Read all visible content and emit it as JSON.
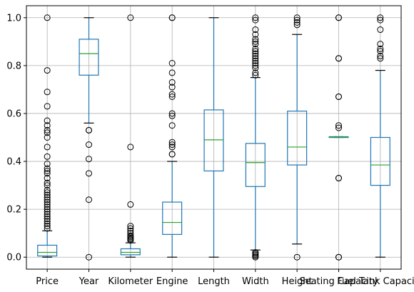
{
  "chart_data": {
    "type": "boxplot",
    "grid": true,
    "ylim": [
      -0.05,
      1.05
    ],
    "yticks": [
      0.0,
      0.2,
      0.4,
      0.6,
      0.8,
      1.0
    ],
    "ytick_labels": [
      "0.0",
      "0.2",
      "0.4",
      "0.6",
      "0.8",
      "1.0"
    ],
    "colors": {
      "box": "#1f77b4",
      "median": "#2ca02c",
      "grid": "#b0b0b0",
      "axes": "#000000"
    },
    "categories": [
      "Price",
      "Year",
      "Kilometer",
      "Engine",
      "Length",
      "Width",
      "Height",
      "Seating Capacity",
      "Fuel Tank Capacity"
    ],
    "boxes": [
      {
        "label": "Price",
        "whislo": 0.0,
        "q1": 0.005,
        "med": 0.02,
        "q3": 0.05,
        "whishi": 0.11,
        "fliers": [
          1.0,
          0.78,
          0.69,
          0.63,
          0.57,
          0.55,
          0.53,
          0.52,
          0.5,
          0.46,
          0.42,
          0.39,
          0.37,
          0.36,
          0.35,
          0.33,
          0.31,
          0.3,
          0.28,
          0.27,
          0.26,
          0.25,
          0.24,
          0.23,
          0.22,
          0.21,
          0.2,
          0.19,
          0.18,
          0.17,
          0.16,
          0.15,
          0.14,
          0.13,
          0.12
        ]
      },
      {
        "label": "Year",
        "whislo": 0.56,
        "q1": 0.76,
        "med": 0.85,
        "q3": 0.91,
        "whishi": 1.0,
        "fliers": [
          0.53,
          0.53,
          0.47,
          0.41,
          0.35,
          0.24,
          0.0
        ]
      },
      {
        "label": "Kilometer",
        "whislo": 0.0,
        "q1": 0.01,
        "med": 0.02,
        "q3": 0.035,
        "whishi": 0.06,
        "fliers": [
          1.0,
          0.46,
          0.22,
          0.13,
          0.12,
          0.11,
          0.1,
          0.09,
          0.085,
          0.08,
          0.075,
          0.07
        ]
      },
      {
        "label": "Engine",
        "whislo": 0.0,
        "q1": 0.095,
        "med": 0.145,
        "q3": 0.23,
        "whishi": 0.4,
        "fliers": [
          1.0,
          1.0,
          0.81,
          0.77,
          0.73,
          0.71,
          0.68,
          0.67,
          0.6,
          0.59,
          0.55,
          0.48,
          0.47,
          0.46,
          0.43,
          0.43
        ]
      },
      {
        "label": "Length",
        "whislo": 0.0,
        "q1": 0.36,
        "med": 0.49,
        "q3": 0.615,
        "whishi": 1.0,
        "fliers": []
      },
      {
        "label": "Width",
        "whislo": 0.03,
        "q1": 0.295,
        "med": 0.395,
        "q3": 0.475,
        "whishi": 0.75,
        "fliers": [
          1.0,
          0.99,
          0.95,
          0.93,
          0.91,
          0.9,
          0.89,
          0.87,
          0.86,
          0.85,
          0.84,
          0.83,
          0.82,
          0.81,
          0.8,
          0.79,
          0.77,
          0.76,
          0.02,
          0.015,
          0.01,
          0.005,
          0.0
        ]
      },
      {
        "label": "Height",
        "whislo": 0.055,
        "q1": 0.385,
        "med": 0.46,
        "q3": 0.61,
        "whishi": 0.93,
        "fliers": [
          1.0,
          0.99,
          0.98,
          0.97,
          0.0
        ]
      },
      {
        "label": "Seating Capacity",
        "whislo": 0.5,
        "q1": 0.5,
        "med": 0.5,
        "q3": 0.503,
        "whishi": 0.503,
        "fliers": [
          1.0,
          1.0,
          0.83,
          0.83,
          0.67,
          0.67,
          0.55,
          0.54,
          0.33,
          0.33,
          0.0,
          0.0
        ]
      },
      {
        "label": "Fuel Tank Capacity",
        "whislo": 0.0,
        "q1": 0.3,
        "med": 0.385,
        "q3": 0.5,
        "whishi": 0.78,
        "fliers": [
          1.0,
          0.99,
          0.95,
          0.89,
          0.87,
          0.86,
          0.84,
          0.83
        ]
      }
    ]
  }
}
